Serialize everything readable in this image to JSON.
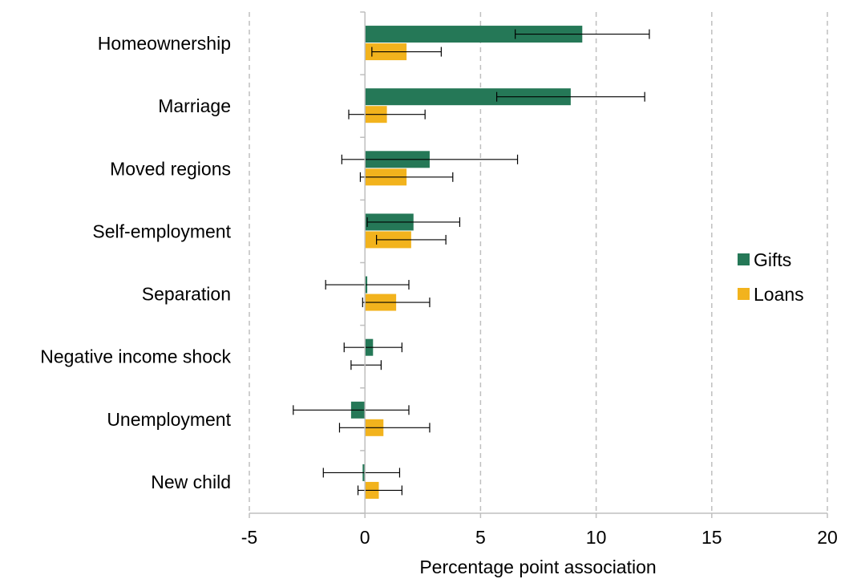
{
  "chart_data": {
    "type": "bar",
    "orientation": "horizontal",
    "categories": [
      "Homeownership",
      "Marriage",
      "Moved regions",
      "Self-employment",
      "Separation",
      "Negative income shock",
      "Unemployment",
      "New child"
    ],
    "series": [
      {
        "name": "Gifts",
        "color": "#257857",
        "values": [
          9.4,
          8.9,
          2.8,
          2.1,
          0.1,
          0.35,
          -0.6,
          -0.1
        ],
        "ci_low": [
          6.5,
          5.7,
          -1.0,
          0.1,
          -1.7,
          -0.9,
          -3.1,
          -1.8
        ],
        "ci_high": [
          12.3,
          12.1,
          6.6,
          4.1,
          1.9,
          1.6,
          1.9,
          1.5
        ]
      },
      {
        "name": "Loans",
        "color": "#f2b31d",
        "values": [
          1.8,
          0.95,
          1.8,
          2.0,
          1.35,
          0.0,
          0.8,
          0.6
        ],
        "ci_low": [
          0.3,
          -0.7,
          -0.2,
          0.5,
          -0.1,
          -0.6,
          -1.1,
          -0.3
        ],
        "ci_high": [
          3.3,
          2.6,
          3.8,
          3.5,
          2.8,
          0.7,
          2.8,
          1.6
        ]
      }
    ],
    "xlim": [
      -5,
      20
    ],
    "xticks": [
      "-5",
      "0",
      "5",
      "10",
      "15",
      "20"
    ],
    "xlabel": "Percentage point association",
    "ylabel": "",
    "title": "",
    "grid": "vertical dashed",
    "legend": "right"
  }
}
